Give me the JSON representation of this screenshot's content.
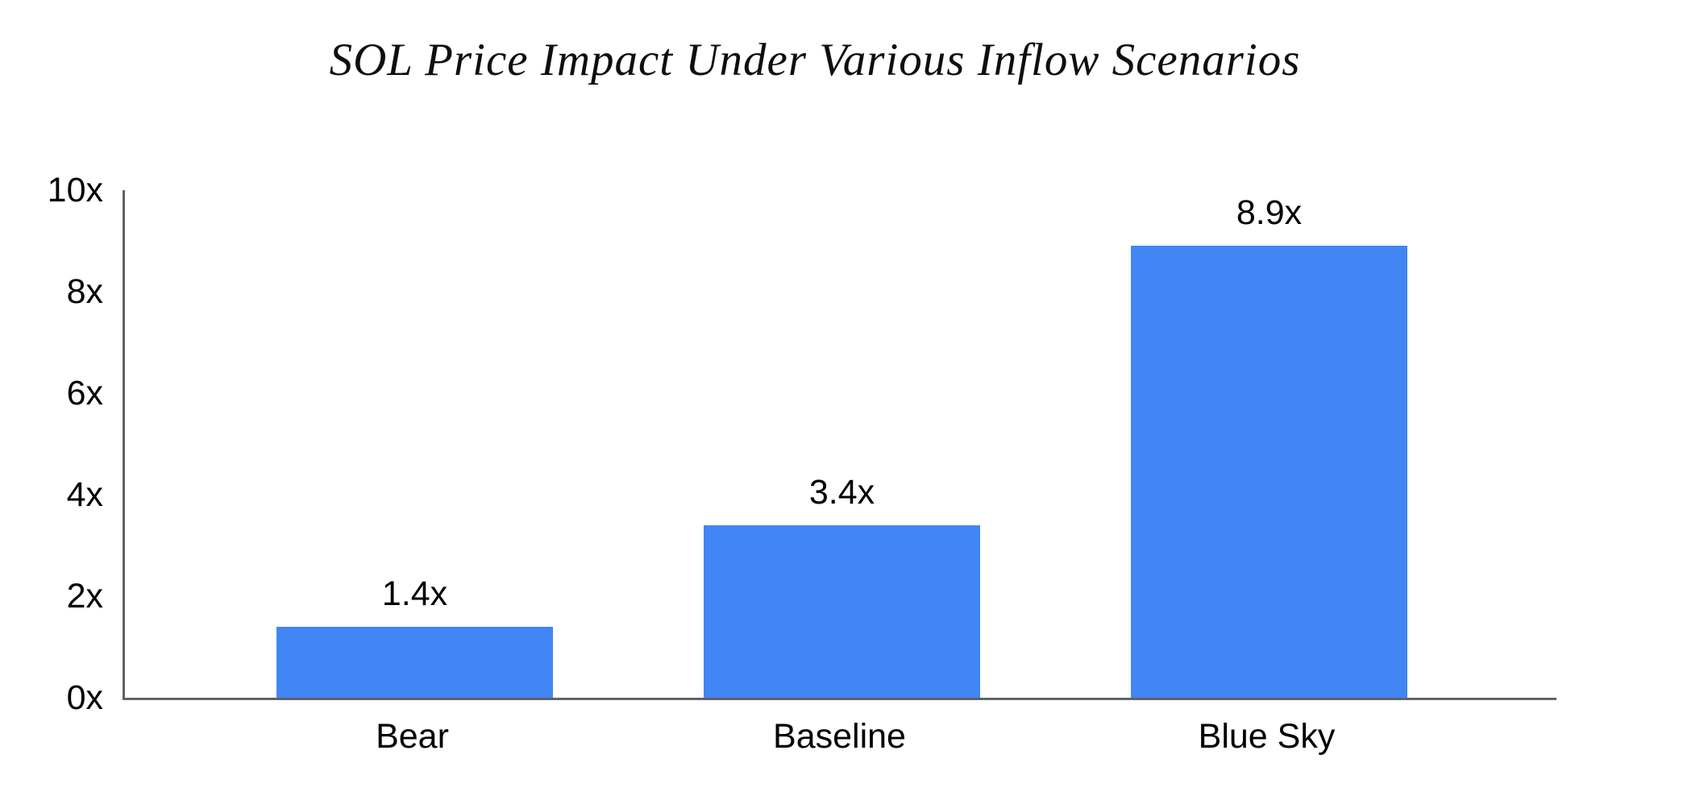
{
  "title": "SOL Price Impact Under Various Inflow Scenarios",
  "colors": {
    "bar": "#4285F4",
    "axis": "#5f6368",
    "text": "#000000",
    "background": "#ffffff"
  },
  "chart_data": {
    "type": "bar",
    "title": "SOL Price Impact Under Various Inflow Scenarios",
    "categories": [
      "Bear",
      "Baseline",
      "Blue Sky"
    ],
    "values": [
      1.4,
      3.4,
      8.9
    ],
    "data_labels": [
      "1.4x",
      "3.4x",
      "8.9x"
    ],
    "xlabel": "",
    "ylabel": "",
    "ylim": [
      0,
      10
    ],
    "ytick_labels": [
      "0x",
      "2x",
      "4x",
      "6x",
      "8x",
      "10x"
    ],
    "grid": false,
    "legend_position": "none",
    "bar_color": "#4285F4"
  }
}
